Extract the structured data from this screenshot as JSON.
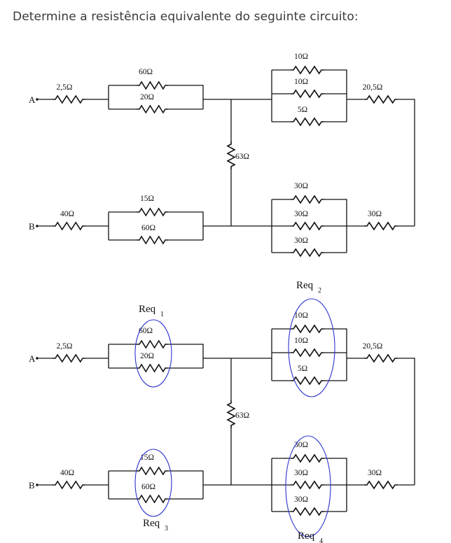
{
  "question": "Determine a resistência equivalente do seguinte circuito:",
  "terminals": {
    "a": "A",
    "b": "B"
  },
  "resistors": {
    "r_a_series": "2,5Ω",
    "r_top_60": "60Ω",
    "r_top_20": "20Ω",
    "r_right_top_10a": "10Ω",
    "r_right_top_10b": "10Ω",
    "r_right_top_5": "5Ω",
    "r_right_series_top": "20,5Ω",
    "r_middle": "63Ω",
    "r_b_series": "40Ω",
    "r_bot_15": "15Ω",
    "r_bot_60": "60Ω",
    "r_right_bot_30a": "30Ω",
    "r_right_bot_30b": "30Ω",
    "r_right_bot_30c": "30Ω",
    "r_right_series_bot": "30Ω"
  },
  "groups": {
    "req1": {
      "base": "Req",
      "sub": "1"
    },
    "req2": {
      "base": "Req",
      "sub": "2"
    },
    "req3": {
      "base": "Req",
      "sub": "3"
    },
    "req4": {
      "base": "Req",
      "sub": "4"
    }
  },
  "colors": {
    "wire": "#111111",
    "highlight": "#2a33cc",
    "text": "#3a3a3a"
  }
}
